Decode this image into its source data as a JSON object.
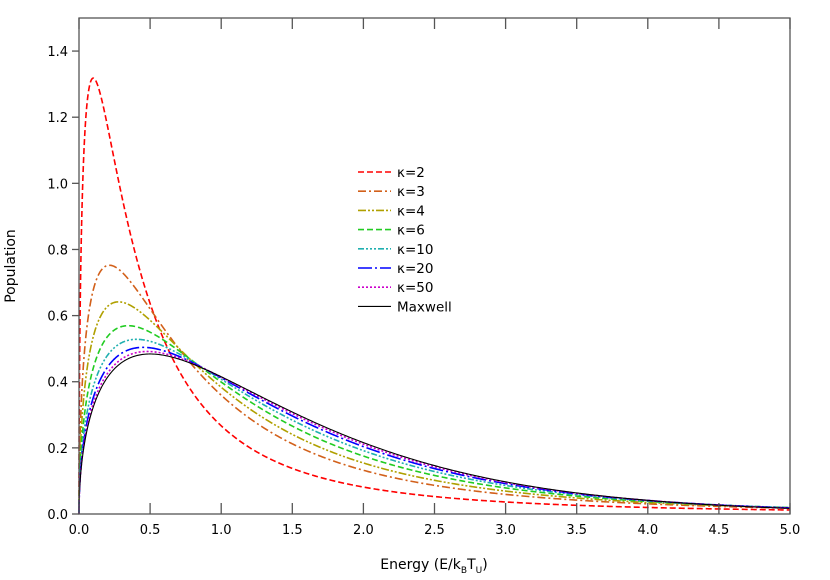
{
  "chart_data": {
    "type": "line",
    "title": "",
    "xlabel": "Energy (E/k",
    "xlabel_sub1": "B",
    "xlabel_mid": "T",
    "xlabel_sub2": "U",
    "xlabel_end": ")",
    "ylabel": "Population",
    "xlim": [
      0,
      5
    ],
    "ylim": [
      0,
      1.5
    ],
    "xticks": [
      "0.0",
      "0.5",
      "1.0",
      "1.5",
      "2.0",
      "2.5",
      "3.0",
      "3.5",
      "4.0",
      "4.5",
      "5.0"
    ],
    "yticks": [
      "0.0",
      "0.2",
      "0.4",
      "0.6",
      "0.8",
      "1.0",
      "1.2",
      "1.4"
    ],
    "grid": false,
    "legend_position": "center",
    "series": [
      {
        "name": "κ=2",
        "kappa": 2,
        "color": "#ff0000",
        "dash": "6,3",
        "peak": [
          0.1,
          1.32
        ]
      },
      {
        "name": "κ=3",
        "kappa": 3,
        "color": "#d2601a",
        "dash": "8,3,2,3",
        "peak": [
          0.21,
          0.75
        ]
      },
      {
        "name": "κ=4",
        "kappa": 4,
        "color": "#b0a000",
        "dash": "8,2,2,2,2,2",
        "peak": [
          0.27,
          0.64
        ]
      },
      {
        "name": "κ=6",
        "kappa": 6,
        "color": "#22cc22",
        "dash": "6,3",
        "peak": [
          0.35,
          0.57
        ]
      },
      {
        "name": "κ=10",
        "kappa": 10,
        "color": "#20b0b0",
        "dash": "6,2,2,2,2,2,2,2",
        "peak": [
          0.4,
          0.53
        ]
      },
      {
        "name": "κ=20",
        "kappa": 20,
        "color": "#0000ff",
        "dash": "14,3,2,3",
        "peak": [
          0.45,
          0.5
        ]
      },
      {
        "name": "κ=50",
        "kappa": 50,
        "color": "#cc00cc",
        "dash": "2,2",
        "peak": [
          0.48,
          0.49
        ]
      },
      {
        "name": "Maxwell",
        "kappa": null,
        "color": "#000000",
        "dash": "",
        "peak": [
          0.5,
          0.48
        ]
      }
    ]
  }
}
